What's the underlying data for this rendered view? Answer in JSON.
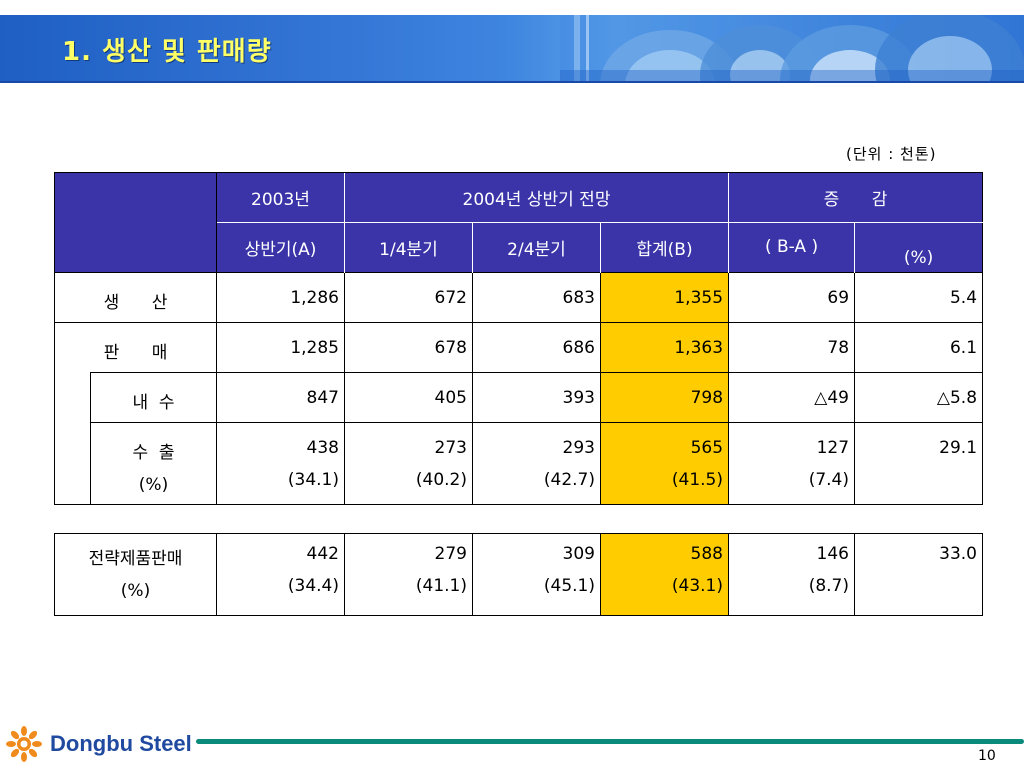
{
  "header": {
    "title": "1. 생산 및 판매량"
  },
  "unit": "(단위 : 천톤)",
  "table_header": {
    "year_2003": "2003년",
    "forecast_2004": "2004년 상반기 전망",
    "change": "증      감",
    "first_half_a": "상반기(A)",
    "q1": "1/4분기",
    "q2": "2/4분기",
    "total_b": "합계(B)",
    "b_minus_a": "( B-A )",
    "pct": "(%)"
  },
  "rows": {
    "production": {
      "label": "생      산",
      "a": "1,286",
      "q1": "672",
      "q2": "683",
      "b": "1,355",
      "diff": "69",
      "pct": "5.4"
    },
    "sales": {
      "label": "판      매",
      "a": "1,285",
      "q1": "678",
      "q2": "686",
      "b": "1,363",
      "diff": "78",
      "pct": "6.1"
    },
    "domestic": {
      "label": "내  수",
      "a": "847",
      "q1": "405",
      "q2": "393",
      "b": "798",
      "diff": "△49",
      "pct": "△5.8"
    },
    "export": {
      "label": "수  출",
      "a": "438",
      "q1": "273",
      "q2": "293",
      "b": "565",
      "diff": "127",
      "pct": "29.1",
      "label2": "(%)",
      "a2": "(34.1)",
      "q1_2": "(40.2)",
      "q2_2": "(42.7)",
      "b2": "(41.5)",
      "diff2": "(7.4)"
    },
    "strategic": {
      "label": "전략제품판매",
      "a": "442",
      "q1": "279",
      "q2": "309",
      "b": "588",
      "diff": "146",
      "pct": "33.0",
      "label2": "(%)",
      "a2": "(34.4)",
      "q1_2": "(41.1)",
      "q2_2": "(45.1)",
      "b2": "(43.1)",
      "diff2": "(8.7)"
    }
  },
  "footer": {
    "brand": "Dongbu Steel",
    "page": "10"
  },
  "colors": {
    "header_blue": "#2b6fcf",
    "title_yellow": "#ffff66",
    "table_header": "#3a34a8",
    "highlight": "#ffcc00",
    "footer_green": "#0a8a7a"
  }
}
